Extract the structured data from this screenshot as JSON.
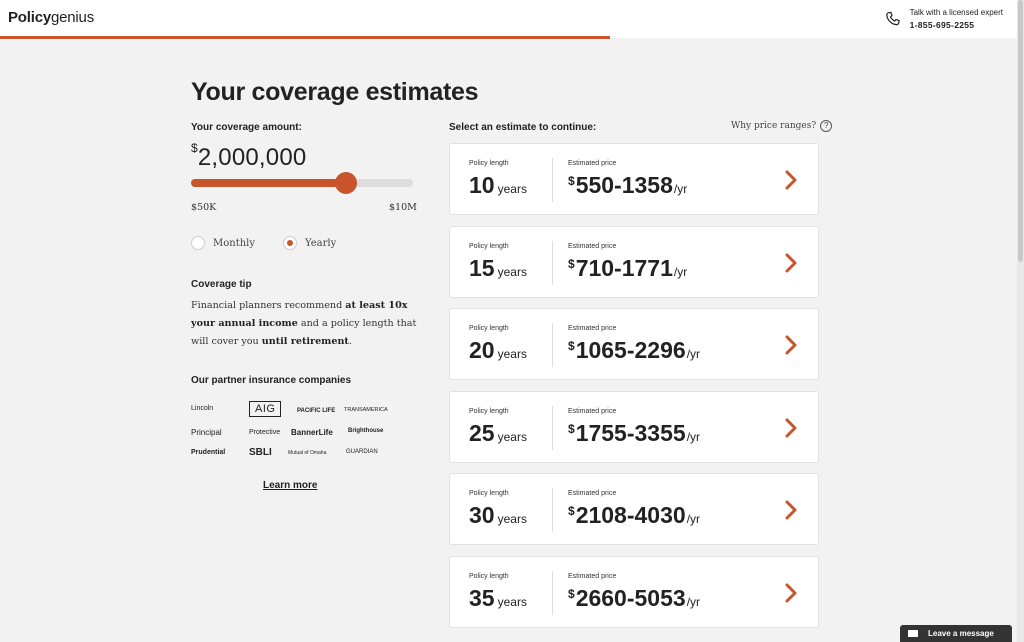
{
  "header": {
    "logo_bold": "Policy",
    "logo_light": "genius",
    "contact_label": "Talk with a licensed expert",
    "contact_phone": "1-855-695-2255",
    "progress_fraction": 0.6
  },
  "coverage": {
    "title": "Your coverage estimates",
    "amount_label": "Your coverage amount:",
    "currency": "$",
    "amount": "2,000,000",
    "slider_fraction": 0.7,
    "slider_min": "$50K",
    "slider_max": "$10M"
  },
  "frequency": {
    "options": [
      {
        "label": "Monthly",
        "selected": false
      },
      {
        "label": "Yearly",
        "selected": true
      }
    ]
  },
  "tip": {
    "title": "Coverage tip",
    "t1": "Financial planners recommend ",
    "t2": "at least 10x your annual income",
    "t3": " and a policy length that will cover you ",
    "t4": "until retirement",
    "t5": "."
  },
  "partners": {
    "title": "Our partner insurance companies",
    "logos": [
      "Lincoln",
      "AIG",
      "PACIFIC LIFE",
      "TRANSAMERICA",
      "Principal",
      "Protective",
      "BannerLife",
      "Brighthouse",
      "Prudential",
      "SBLI",
      "Mutual of Omaha",
      "GUARDIAN"
    ],
    "learn_more": "Learn more"
  },
  "estimates": {
    "select_label": "Select an estimate to continue:",
    "why_label": "Why price ranges?",
    "policy_length_label": "Policy length",
    "estimated_price_label": "Estimated price",
    "years_unit": "years",
    "per_unit": "/yr",
    "currency": "$",
    "items": [
      {
        "length": "10",
        "price": "550-1358"
      },
      {
        "length": "15",
        "price": "710-1771"
      },
      {
        "length": "20",
        "price": "1065-2296"
      },
      {
        "length": "25",
        "price": "1755-3355"
      },
      {
        "length": "30",
        "price": "2108-4030"
      },
      {
        "length": "35",
        "price": "2660-5053"
      }
    ]
  },
  "chat": {
    "label": "Leave a message"
  },
  "colors": {
    "accent": "#c8542b"
  }
}
